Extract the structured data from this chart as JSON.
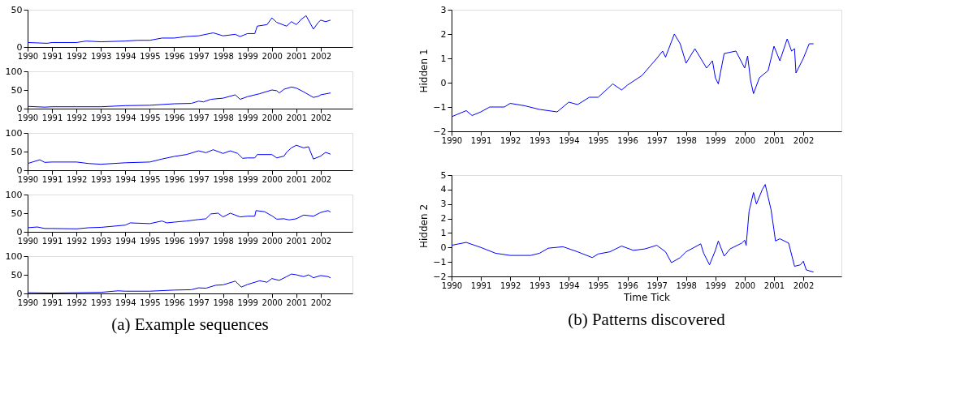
{
  "chart_data": [
    {
      "type": "line",
      "xlim": [
        1990,
        2003.3
      ],
      "xticks": [
        1990,
        1991,
        1992,
        1993,
        1994,
        1995,
        1996,
        1997,
        1998,
        1999,
        2000,
        2001,
        2002
      ],
      "ylim": [
        0,
        50
      ],
      "yticks": [
        0,
        50
      ],
      "grid": false,
      "legend": false,
      "series": [
        {
          "color": "#0000ff",
          "x": [
            1990,
            1990.8,
            1991,
            1992,
            1992.4,
            1993,
            1994,
            1994.5,
            1995,
            1995.5,
            1996,
            1996.5,
            1997,
            1997.6,
            1998,
            1998.5,
            1998.7,
            1999,
            1999.3,
            1999.4,
            1999.8,
            2000,
            2000.2,
            2000.6,
            2000.8,
            2001,
            2001.2,
            2001.4,
            2001.7,
            2001.9,
            2002,
            2002.2,
            2002.4
          ],
          "values": [
            6,
            5,
            6,
            6,
            8,
            7,
            8,
            9,
            9,
            12,
            12,
            14,
            15,
            19,
            15,
            17,
            14,
            18,
            18,
            28,
            30,
            39,
            33,
            28,
            34,
            30,
            37,
            42,
            24,
            33,
            36,
            34,
            36
          ]
        }
      ]
    },
    {
      "type": "line",
      "xlim": [
        1990,
        2003.3
      ],
      "xticks": [
        1990,
        1991,
        1992,
        1993,
        1994,
        1995,
        1996,
        1997,
        1998,
        1999,
        2000,
        2001,
        2002
      ],
      "ylim": [
        0,
        100
      ],
      "yticks": [
        0,
        50,
        100
      ],
      "grid": false,
      "legend": false,
      "series": [
        {
          "color": "#0000ff",
          "x": [
            1990,
            1990.7,
            1991,
            1992,
            1993,
            1994,
            1995,
            1996,
            1996.7,
            1997,
            1997.2,
            1997.5,
            1998,
            1998.5,
            1998.7,
            1999,
            1999.5,
            2000,
            2000.2,
            2000.3,
            2000.5,
            2000.8,
            2001,
            2001.3,
            2001.7,
            2001.9,
            2002,
            2002.4
          ],
          "values": [
            6,
            4,
            5,
            5,
            5,
            8,
            9,
            13,
            14,
            20,
            18,
            25,
            28,
            37,
            25,
            32,
            40,
            50,
            48,
            42,
            52,
            58,
            55,
            45,
            30,
            33,
            37,
            42
          ]
        }
      ]
    },
    {
      "type": "line",
      "xlim": [
        1990,
        2003.3
      ],
      "xticks": [
        1990,
        1991,
        1992,
        1993,
        1994,
        1995,
        1996,
        1997,
        1998,
        1999,
        2000,
        2001,
        2002
      ],
      "ylim": [
        0,
        100
      ],
      "yticks": [
        0,
        50,
        100
      ],
      "grid": false,
      "legend": false,
      "series": [
        {
          "color": "#0000ff",
          "x": [
            1990,
            1990.5,
            1990.7,
            1991,
            1992,
            1992.5,
            1993,
            1994,
            1995,
            1995.5,
            1996,
            1996.5,
            1997,
            1997.3,
            1997.6,
            1998,
            1998.3,
            1998.6,
            1998.8,
            1999,
            1999.3,
            1999.4,
            2000,
            2000.2,
            2000.5,
            2000.6,
            2000.8,
            2001,
            2001.3,
            2001.5,
            2001.7,
            2002,
            2002.2,
            2002.4
          ],
          "values": [
            18,
            28,
            21,
            22,
            22,
            18,
            16,
            20,
            22,
            30,
            37,
            42,
            52,
            47,
            55,
            45,
            52,
            45,
            32,
            33,
            33,
            42,
            42,
            33,
            38,
            48,
            60,
            67,
            60,
            63,
            30,
            38,
            48,
            43
          ]
        }
      ]
    },
    {
      "type": "line",
      "xlim": [
        1990,
        2003.3
      ],
      "xticks": [
        1990,
        1991,
        1992,
        1993,
        1994,
        1995,
        1996,
        1997,
        1998,
        1999,
        2000,
        2001,
        2002
      ],
      "ylim": [
        0,
        100
      ],
      "yticks": [
        0,
        50,
        100
      ],
      "grid": false,
      "legend": false,
      "series": [
        {
          "color": "#0000ff",
          "x": [
            1990,
            1990.4,
            1990.7,
            1991,
            1992,
            1992.5,
            1993,
            1994,
            1994.2,
            1995,
            1995.5,
            1995.7,
            1996,
            1996.5,
            1997,
            1997.3,
            1997.5,
            1997.8,
            1998,
            1998.3,
            1998.7,
            1999,
            1999.3,
            1999.35,
            1999.7,
            2000,
            2000.2,
            2000.5,
            2000.7,
            2001,
            2001.3,
            2001.7,
            2002,
            2002.3,
            2002.4
          ],
          "values": [
            11,
            13,
            9,
            9,
            8,
            11,
            12,
            18,
            24,
            22,
            29,
            24,
            26,
            29,
            33,
            35,
            48,
            50,
            40,
            50,
            40,
            42,
            42,
            57,
            54,
            43,
            34,
            35,
            32,
            35,
            45,
            42,
            52,
            57,
            53
          ]
        }
      ]
    },
    {
      "type": "line",
      "xlim": [
        1990,
        2003.3
      ],
      "xticks": [
        1990,
        1991,
        1992,
        1993,
        1994,
        1995,
        1996,
        1997,
        1998,
        1999,
        2000,
        2001,
        2002
      ],
      "ylim": [
        0,
        100
      ],
      "yticks": [
        0,
        50,
        100
      ],
      "grid": false,
      "legend": false,
      "annotations": [
        "(a) Example sequences"
      ],
      "series": [
        {
          "color": "#0000ff",
          "x": [
            1990,
            1991,
            1992,
            1993,
            1993.7,
            1994,
            1995,
            1996,
            1996.7,
            1997,
            1997.3,
            1997.7,
            1998,
            1998.5,
            1998.75,
            1999,
            1999.5,
            1999.8,
            2000,
            2000.3,
            2000.6,
            2000.8,
            2001,
            2001.3,
            2001.5,
            2001.7,
            2002,
            2002.3,
            2002.4
          ],
          "values": [
            2,
            1,
            2,
            3,
            7,
            6,
            6,
            9,
            10,
            15,
            14,
            22,
            23,
            33,
            17,
            24,
            34,
            30,
            40,
            35,
            45,
            52,
            50,
            45,
            50,
            42,
            48,
            45,
            42
          ]
        }
      ]
    },
    {
      "type": "line",
      "ylabel": "Hidden 1",
      "xlim": [
        1990,
        2003.3
      ],
      "xticks": [
        1990,
        1991,
        1992,
        1993,
        1994,
        1995,
        1996,
        1997,
        1998,
        1999,
        2000,
        2001,
        2002
      ],
      "ylim": [
        -2,
        3
      ],
      "yticks": [
        -2,
        -1,
        0,
        1,
        2,
        3
      ],
      "grid": false,
      "legend": false,
      "series": [
        {
          "color": "#0000ff",
          "x": [
            1990,
            1990.5,
            1990.7,
            1991,
            1991.3,
            1991.8,
            1992,
            1992.5,
            1993,
            1993.6,
            1994,
            1994.3,
            1994.7,
            1995,
            1995.5,
            1995.8,
            1996,
            1996.5,
            1997,
            1997.2,
            1997.3,
            1997.6,
            1997.8,
            1998,
            1998.3,
            1998.5,
            1998.7,
            1998.9,
            1999,
            1999.1,
            1999.3,
            1999.7,
            2000,
            2000.1,
            2000.2,
            2000.3,
            2000.5,
            2000.8,
            2001,
            2001.2,
            2001.45,
            2001.6,
            2001.7,
            2001.75,
            2002,
            2002.2,
            2002.35
          ],
          "values": [
            -1.4,
            -1.15,
            -1.35,
            -1.2,
            -1.0,
            -1.0,
            -0.85,
            -0.95,
            -1.1,
            -1.2,
            -0.8,
            -0.9,
            -0.6,
            -0.6,
            -0.05,
            -0.3,
            -0.1,
            0.3,
            1.0,
            1.3,
            1.05,
            2.0,
            1.6,
            0.8,
            1.4,
            1.0,
            0.6,
            0.9,
            0.2,
            -0.05,
            1.2,
            1.3,
            0.6,
            1.1,
            0.1,
            -0.45,
            0.2,
            0.5,
            1.5,
            0.9,
            1.8,
            1.3,
            1.4,
            0.4,
            1.0,
            1.6,
            1.6
          ]
        }
      ]
    },
    {
      "type": "line",
      "ylabel": "Hidden 2",
      "xlabel": "Time Tick",
      "xlim": [
        1990,
        2003.3
      ],
      "xticks": [
        1990,
        1991,
        1992,
        1993,
        1994,
        1995,
        1996,
        1997,
        1998,
        1999,
        2000,
        2001,
        2002
      ],
      "ylim": [
        -2,
        5
      ],
      "yticks": [
        -2,
        -1,
        0,
        1,
        2,
        3,
        4,
        5
      ],
      "grid": false,
      "legend": false,
      "annotations": [
        "(b) Patterns discovered"
      ],
      "series": [
        {
          "color": "#0000ff",
          "x": [
            1990,
            1990.5,
            1991,
            1991.5,
            1992,
            1992.7,
            1993,
            1993.3,
            1993.8,
            1994.3,
            1994.8,
            1995,
            1995.4,
            1995.8,
            1996.2,
            1996.6,
            1997,
            1997.3,
            1997.5,
            1997.8,
            1998,
            1998.5,
            1998.6,
            1998.8,
            1999,
            1999.1,
            1999.3,
            1999.5,
            1999.9,
            2000,
            2000.05,
            2000.15,
            2000.3,
            2000.4,
            2000.6,
            2000.7,
            2000.9,
            2001,
            2001.05,
            2001.2,
            2001.5,
            2001.7,
            2001.9,
            2002,
            2002.1,
            2002.35
          ],
          "values": [
            0.15,
            0.35,
            0.0,
            -0.4,
            -0.55,
            -0.55,
            -0.4,
            -0.05,
            0.05,
            -0.3,
            -0.7,
            -0.45,
            -0.3,
            0.1,
            -0.2,
            -0.1,
            0.15,
            -0.3,
            -1.05,
            -0.7,
            -0.3,
            0.25,
            -0.4,
            -1.2,
            -0.2,
            0.45,
            -0.6,
            -0.1,
            0.3,
            0.5,
            0.15,
            2.5,
            3.8,
            3.0,
            4.0,
            4.35,
            2.6,
            1.2,
            0.45,
            0.6,
            0.3,
            -1.3,
            -1.2,
            -0.95,
            -1.55,
            -1.7
          ]
        }
      ]
    }
  ]
}
